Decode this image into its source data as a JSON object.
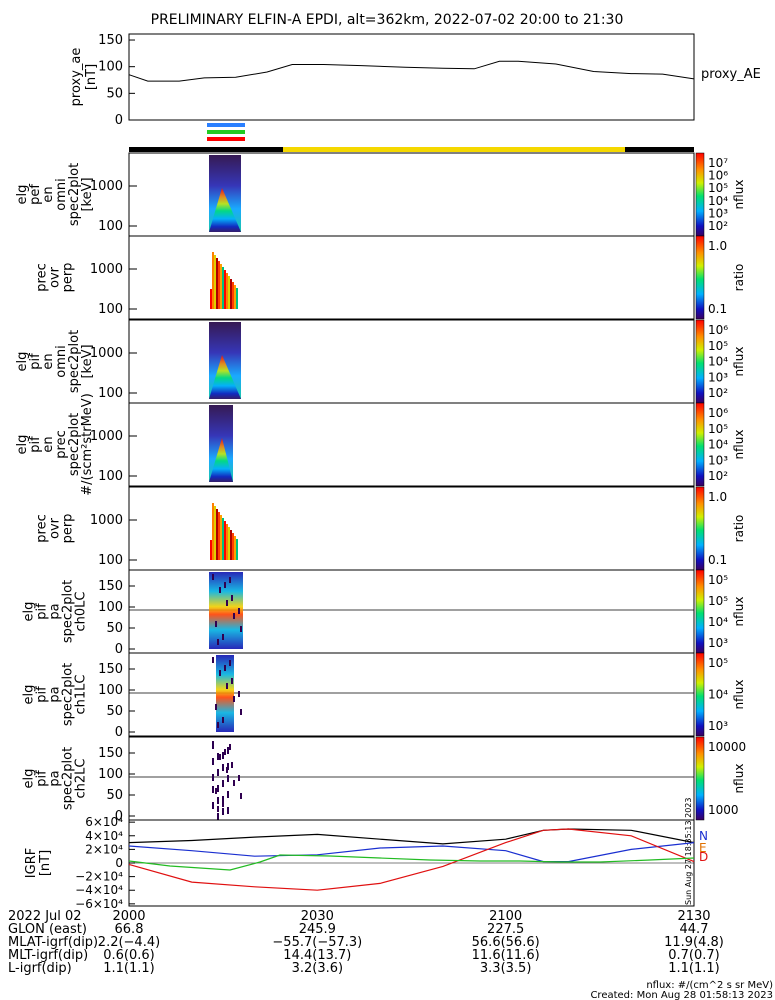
{
  "title": "PRELIMINARY ELFIN-A EPDI, alt=362km, 2022-07-02 20:00 to 21:30",
  "colors": {
    "bar_black": "#000000",
    "bar_yellow": "#f5d800",
    "mark_blue": "#2a7fff",
    "mark_green": "#22cc22",
    "mark_red": "#ff0000",
    "grf_n": "#000000",
    "grf_e": "#1a2fd0",
    "grf_d": "#e01010",
    "grf_green": "#22bb22"
  },
  "panels": {
    "ae": {
      "ylabel": [
        "proxy_ae",
        "[nT]"
      ],
      "yticks": [
        "150",
        "100",
        "50",
        "0"
      ],
      "legend": "proxy_AE"
    },
    "p1": {
      "ylabel": [
        "elg",
        "pef",
        "en",
        "omni",
        "spec2plot",
        "[keV]"
      ],
      "yticks": [
        "1000",
        "100"
      ],
      "cbar_ticks": [
        "10⁷",
        "10⁶",
        "10⁵",
        "10⁴",
        "10³",
        "10²"
      ],
      "cbar_label": "nflux"
    },
    "p2": {
      "ylabel": [
        "prec",
        "ovr",
        "perp"
      ],
      "yticks": [
        "1000",
        "100"
      ],
      "cbar_ticks": [
        "1.0",
        "0.1"
      ],
      "cbar_label": "ratio"
    },
    "p3": {
      "ylabel": [
        "elg",
        "pif",
        "en",
        "omni",
        "spec2plot",
        "[keV]"
      ],
      "yticks": [
        "1000",
        "100"
      ],
      "cbar_ticks": [
        "10⁶",
        "10⁵",
        "10⁴",
        "10³",
        "10²"
      ],
      "cbar_label": "nflux"
    },
    "p4": {
      "ylabel": [
        "elg",
        "pif",
        "en",
        "prec",
        "spec2plot",
        "#/(scm²strMeV)"
      ],
      "yticks": [
        "1000",
        "100"
      ],
      "cbar_ticks": [
        "10⁶",
        "10⁵",
        "10⁴",
        "10³",
        "10²"
      ],
      "cbar_label": "nflux"
    },
    "p5": {
      "ylabel": [
        "prec",
        "ovr",
        "perp"
      ],
      "yticks": [
        "1000",
        "100"
      ],
      "cbar_ticks": [
        "1.0",
        "0.1"
      ],
      "cbar_label": "ratio"
    },
    "p6": {
      "ylabel": [
        "elg",
        "pif",
        "pa",
        "spec2plot",
        "ch0LC"
      ],
      "yticks": [
        "150",
        "100",
        "50",
        "0"
      ],
      "cbar_ticks": [
        "10⁵",
        "10⁵",
        "10⁴",
        "10³"
      ],
      "cbar_label": "nflux"
    },
    "p7": {
      "ylabel": [
        "elg",
        "pif",
        "pa",
        "spec2plot",
        "ch1LC"
      ],
      "yticks": [
        "150",
        "100",
        "50",
        "0"
      ],
      "cbar_ticks": [
        "10⁵",
        "10⁴",
        "10³"
      ],
      "cbar_label": "nflux"
    },
    "p8": {
      "ylabel": [
        "elg",
        "pif",
        "pa",
        "spec2plot",
        "ch2LC"
      ],
      "yticks": [
        "150",
        "100",
        "50",
        "0"
      ],
      "cbar_ticks": [
        "10000",
        "1000"
      ],
      "cbar_label": "nflux"
    },
    "grf": {
      "ylabel": [
        "IGRF",
        "[nT]"
      ],
      "yticks": [
        "6×10⁴",
        "4×10⁴",
        "2×10⁴",
        "0",
        "−2×10⁴",
        "−4×10⁴",
        "−6×10⁴"
      ],
      "legend": [
        "N",
        "E",
        "D"
      ]
    }
  },
  "side_stamp": "Sun Aug 27 18:35:13 2023",
  "xaxis": {
    "row_labels": [
      "2022 Jul 02",
      "GLON (east)",
      "MLAT-igrf(dip)",
      "MLT-igrf(dip)",
      "L-igrf(dip)"
    ],
    "columns": [
      {
        "time": "2000",
        "values": [
          "66.8",
          "2.2(−4.4)",
          "0.6(0.6)",
          "1.1(1.1)"
        ]
      },
      {
        "time": "2030",
        "values": [
          "245.9",
          "−55.7(−57.3)",
          "14.4(13.7)",
          "3.2(3.6)"
        ]
      },
      {
        "time": "2100",
        "values": [
          "227.5",
          "56.6(56.6)",
          "11.6(11.6)",
          "3.3(3.5)"
        ]
      },
      {
        "time": "2130",
        "values": [
          "44.7",
          "11.9(4.8)",
          "0.7(0.7)",
          "1.1(1.1)"
        ]
      }
    ]
  },
  "footer": {
    "units": "nflux: #/(cm^2 s sr MeV)",
    "created": "Created: Mon Aug 28 01:58:13 2023"
  },
  "chart_data": [
    {
      "type": "line",
      "name": "proxy_ae",
      "x_minutes_after_2000": [
        0,
        3,
        8,
        12,
        17,
        22,
        26,
        31,
        37,
        44,
        50,
        55,
        59,
        62,
        68,
        74,
        80,
        85,
        90
      ],
      "y": [
        85,
        73,
        73,
        79,
        80,
        90,
        104,
        104,
        102,
        99,
        97,
        96,
        110,
        110,
        105,
        91,
        87,
        86,
        77
      ],
      "ylim": [
        0,
        150
      ]
    },
    {
      "type": "line",
      "name": "IGRF",
      "ylim": [
        -60000,
        60000
      ],
      "x_minutes_after_2000": [
        0,
        10,
        20,
        30,
        40,
        50,
        60,
        66,
        70,
        80,
        90
      ],
      "series": [
        {
          "name": "N",
          "values": [
            30000,
            33000,
            38000,
            42000,
            35000,
            28000,
            35000,
            48000,
            50000,
            48000,
            30000
          ]
        },
        {
          "name": "E",
          "values": [
            25000,
            18000,
            10000,
            12000,
            22000,
            25000,
            18000,
            2000,
            2000,
            20000,
            30000
          ]
        },
        {
          "name": "D",
          "values": [
            -2000,
            -28000,
            -35000,
            -40000,
            -30000,
            -5000,
            30000,
            48000,
            50000,
            40000,
            2000
          ]
        }
      ]
    }
  ]
}
